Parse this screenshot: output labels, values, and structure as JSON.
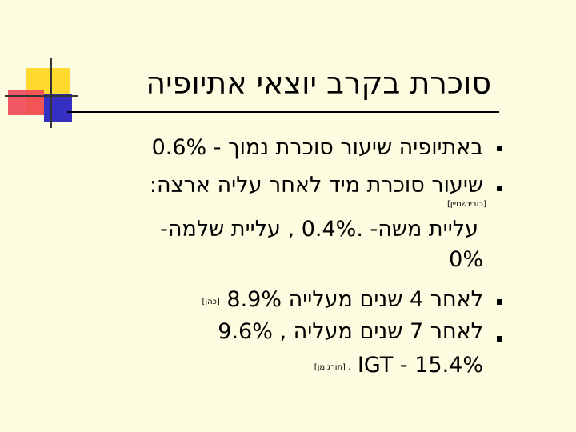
{
  "title": "סוכרת בקרב יוצאי אתיופיה",
  "bullets": [
    {
      "text": "באתיופיה שיעור סוכרת נמוך - 0.6%"
    },
    {
      "text": "שיעור סוכרת מיד לאחר עליה ארצה:"
    },
    {
      "text": "לאחר 4 שנים מעלייה 8.9%",
      "cite": "[כהן]"
    },
    {
      "text": "לאחר 7 שנים מעליה , 9.6%"
    }
  ],
  "sub": {
    "cite": "[רובינשטיין]",
    "line1": "עליית משה- .0.4% , עליית שלמה-",
    "line2": "0%"
  },
  "igt": {
    "text": "IGT - 15.4%",
    "cite": ", [תורג'מן]"
  },
  "colors": {
    "background": "#FCFCE0",
    "yellow": "#FFD92E",
    "red": "#F24A5A",
    "blue": "#3530C2"
  }
}
